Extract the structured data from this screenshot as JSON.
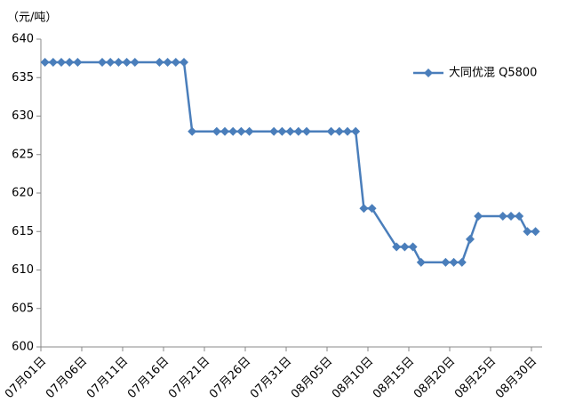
{
  "chart_data": {
    "type": "line",
    "y_label": "（元/吨）",
    "x": [
      "07月01日",
      "07月02日",
      "07月03日",
      "07月04日",
      "07月05日",
      "07月08日",
      "07月09日",
      "07月10日",
      "07月11日",
      "07月12日",
      "07月15日",
      "07月16日",
      "07月17日",
      "07月18日",
      "07月19日",
      "07月22日",
      "07月23日",
      "07月24日",
      "07月25日",
      "07月26日",
      "07月29日",
      "07月30日",
      "07月31日",
      "08月01日",
      "08月02日",
      "08月05日",
      "08月06日",
      "08月07日",
      "08月08日",
      "08月09日",
      "08月10日",
      "08月13日",
      "08月14日",
      "08月15日",
      "08月16日",
      "08月19日",
      "08月20日",
      "08月21日",
      "08月22日",
      "08月23日",
      "08月26日",
      "08月27日",
      "08月28日",
      "08月29日",
      "08月30日"
    ],
    "series": [
      {
        "name": "大同优混 Q5800",
        "color": "#4a7ebb",
        "values": [
          637,
          637,
          637,
          637,
          637,
          637,
          637,
          637,
          637,
          637,
          637,
          637,
          637,
          637,
          628,
          628,
          628,
          628,
          628,
          628,
          628,
          628,
          628,
          628,
          628,
          628,
          628,
          628,
          628,
          618,
          618,
          613,
          613,
          613,
          611,
          611,
          611,
          611,
          614,
          617,
          617,
          617,
          617,
          615,
          615
        ]
      }
    ],
    "ylim": [
      600,
      640
    ],
    "yticks": [
      600,
      605,
      610,
      615,
      620,
      625,
      630,
      635,
      640
    ],
    "xticks": [
      "07月01日",
      "07月06日",
      "07月11日",
      "07月16日",
      "07月21日",
      "07月26日",
      "07月31日",
      "08月05日",
      "08月10日",
      "08月15日",
      "08月20日",
      "08月25日",
      "08月30日"
    ],
    "legend": "upper right",
    "grid": false
  }
}
